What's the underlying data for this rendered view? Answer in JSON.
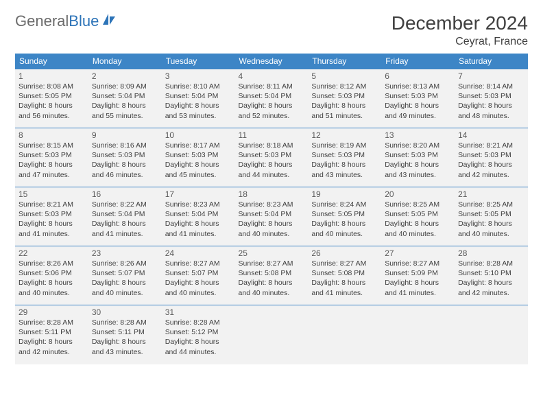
{
  "brand": {
    "word1": "General",
    "word2": "Blue",
    "logo_color_gray": "#6b6b6b",
    "logo_color_blue": "#2d74b8"
  },
  "title": "December 2024",
  "location": "Ceyrat, France",
  "colors": {
    "header_bg": "#3d85c6",
    "header_fg": "#ffffff",
    "cell_bg": "#f2f2f2",
    "divider": "#3d85c6",
    "text": "#404040"
  },
  "day_headers": [
    "Sunday",
    "Monday",
    "Tuesday",
    "Wednesday",
    "Thursday",
    "Friday",
    "Saturday"
  ],
  "weeks": [
    [
      {
        "n": "1",
        "sr": "Sunrise: 8:08 AM",
        "ss": "Sunset: 5:05 PM",
        "d1": "Daylight: 8 hours",
        "d2": "and 56 minutes."
      },
      {
        "n": "2",
        "sr": "Sunrise: 8:09 AM",
        "ss": "Sunset: 5:04 PM",
        "d1": "Daylight: 8 hours",
        "d2": "and 55 minutes."
      },
      {
        "n": "3",
        "sr": "Sunrise: 8:10 AM",
        "ss": "Sunset: 5:04 PM",
        "d1": "Daylight: 8 hours",
        "d2": "and 53 minutes."
      },
      {
        "n": "4",
        "sr": "Sunrise: 8:11 AM",
        "ss": "Sunset: 5:04 PM",
        "d1": "Daylight: 8 hours",
        "d2": "and 52 minutes."
      },
      {
        "n": "5",
        "sr": "Sunrise: 8:12 AM",
        "ss": "Sunset: 5:03 PM",
        "d1": "Daylight: 8 hours",
        "d2": "and 51 minutes."
      },
      {
        "n": "6",
        "sr": "Sunrise: 8:13 AM",
        "ss": "Sunset: 5:03 PM",
        "d1": "Daylight: 8 hours",
        "d2": "and 49 minutes."
      },
      {
        "n": "7",
        "sr": "Sunrise: 8:14 AM",
        "ss": "Sunset: 5:03 PM",
        "d1": "Daylight: 8 hours",
        "d2": "and 48 minutes."
      }
    ],
    [
      {
        "n": "8",
        "sr": "Sunrise: 8:15 AM",
        "ss": "Sunset: 5:03 PM",
        "d1": "Daylight: 8 hours",
        "d2": "and 47 minutes."
      },
      {
        "n": "9",
        "sr": "Sunrise: 8:16 AM",
        "ss": "Sunset: 5:03 PM",
        "d1": "Daylight: 8 hours",
        "d2": "and 46 minutes."
      },
      {
        "n": "10",
        "sr": "Sunrise: 8:17 AM",
        "ss": "Sunset: 5:03 PM",
        "d1": "Daylight: 8 hours",
        "d2": "and 45 minutes."
      },
      {
        "n": "11",
        "sr": "Sunrise: 8:18 AM",
        "ss": "Sunset: 5:03 PM",
        "d1": "Daylight: 8 hours",
        "d2": "and 44 minutes."
      },
      {
        "n": "12",
        "sr": "Sunrise: 8:19 AM",
        "ss": "Sunset: 5:03 PM",
        "d1": "Daylight: 8 hours",
        "d2": "and 43 minutes."
      },
      {
        "n": "13",
        "sr": "Sunrise: 8:20 AM",
        "ss": "Sunset: 5:03 PM",
        "d1": "Daylight: 8 hours",
        "d2": "and 43 minutes."
      },
      {
        "n": "14",
        "sr": "Sunrise: 8:21 AM",
        "ss": "Sunset: 5:03 PM",
        "d1": "Daylight: 8 hours",
        "d2": "and 42 minutes."
      }
    ],
    [
      {
        "n": "15",
        "sr": "Sunrise: 8:21 AM",
        "ss": "Sunset: 5:03 PM",
        "d1": "Daylight: 8 hours",
        "d2": "and 41 minutes."
      },
      {
        "n": "16",
        "sr": "Sunrise: 8:22 AM",
        "ss": "Sunset: 5:04 PM",
        "d1": "Daylight: 8 hours",
        "d2": "and 41 minutes."
      },
      {
        "n": "17",
        "sr": "Sunrise: 8:23 AM",
        "ss": "Sunset: 5:04 PM",
        "d1": "Daylight: 8 hours",
        "d2": "and 41 minutes."
      },
      {
        "n": "18",
        "sr": "Sunrise: 8:23 AM",
        "ss": "Sunset: 5:04 PM",
        "d1": "Daylight: 8 hours",
        "d2": "and 40 minutes."
      },
      {
        "n": "19",
        "sr": "Sunrise: 8:24 AM",
        "ss": "Sunset: 5:05 PM",
        "d1": "Daylight: 8 hours",
        "d2": "and 40 minutes."
      },
      {
        "n": "20",
        "sr": "Sunrise: 8:25 AM",
        "ss": "Sunset: 5:05 PM",
        "d1": "Daylight: 8 hours",
        "d2": "and 40 minutes."
      },
      {
        "n": "21",
        "sr": "Sunrise: 8:25 AM",
        "ss": "Sunset: 5:05 PM",
        "d1": "Daylight: 8 hours",
        "d2": "and 40 minutes."
      }
    ],
    [
      {
        "n": "22",
        "sr": "Sunrise: 8:26 AM",
        "ss": "Sunset: 5:06 PM",
        "d1": "Daylight: 8 hours",
        "d2": "and 40 minutes."
      },
      {
        "n": "23",
        "sr": "Sunrise: 8:26 AM",
        "ss": "Sunset: 5:07 PM",
        "d1": "Daylight: 8 hours",
        "d2": "and 40 minutes."
      },
      {
        "n": "24",
        "sr": "Sunrise: 8:27 AM",
        "ss": "Sunset: 5:07 PM",
        "d1": "Daylight: 8 hours",
        "d2": "and 40 minutes."
      },
      {
        "n": "25",
        "sr": "Sunrise: 8:27 AM",
        "ss": "Sunset: 5:08 PM",
        "d1": "Daylight: 8 hours",
        "d2": "and 40 minutes."
      },
      {
        "n": "26",
        "sr": "Sunrise: 8:27 AM",
        "ss": "Sunset: 5:08 PM",
        "d1": "Daylight: 8 hours",
        "d2": "and 41 minutes."
      },
      {
        "n": "27",
        "sr": "Sunrise: 8:27 AM",
        "ss": "Sunset: 5:09 PM",
        "d1": "Daylight: 8 hours",
        "d2": "and 41 minutes."
      },
      {
        "n": "28",
        "sr": "Sunrise: 8:28 AM",
        "ss": "Sunset: 5:10 PM",
        "d1": "Daylight: 8 hours",
        "d2": "and 42 minutes."
      }
    ],
    [
      {
        "n": "29",
        "sr": "Sunrise: 8:28 AM",
        "ss": "Sunset: 5:11 PM",
        "d1": "Daylight: 8 hours",
        "d2": "and 42 minutes."
      },
      {
        "n": "30",
        "sr": "Sunrise: 8:28 AM",
        "ss": "Sunset: 5:11 PM",
        "d1": "Daylight: 8 hours",
        "d2": "and 43 minutes."
      },
      {
        "n": "31",
        "sr": "Sunrise: 8:28 AM",
        "ss": "Sunset: 5:12 PM",
        "d1": "Daylight: 8 hours",
        "d2": "and 44 minutes."
      },
      null,
      null,
      null,
      null
    ]
  ]
}
